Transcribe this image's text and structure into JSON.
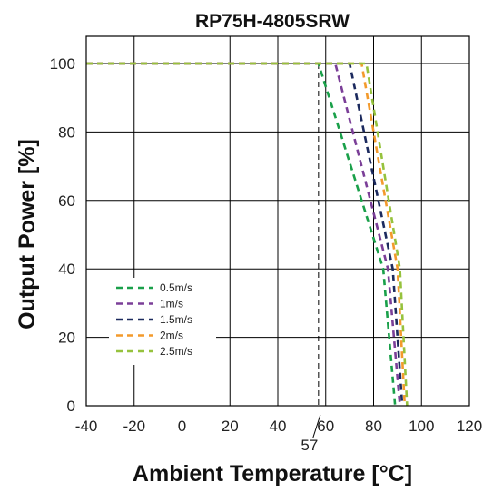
{
  "chart_data": {
    "type": "line",
    "title": "RP75H-4805SRW",
    "xlabel": "Ambient Temperature [°C]",
    "ylabel": "Output Power [%]",
    "xlim": [
      -40,
      120
    ],
    "ylim": [
      0,
      100
    ],
    "xticks": [
      "-40",
      "-20",
      "0",
      "20",
      "40",
      "60",
      "80",
      "100",
      "120"
    ],
    "yticks": [
      "0",
      "20",
      "40",
      "60",
      "80",
      "100"
    ],
    "grid": true,
    "legend_position": "bottom-left",
    "series": [
      {
        "name": "0.5m/s",
        "color": "#1aa04a",
        "x": [
          -40,
          57,
          84,
          89,
          89
        ],
        "y": [
          100,
          100,
          40,
          0,
          0
        ]
      },
      {
        "name": "1m/s",
        "color": "#7b3f98",
        "x": [
          -40,
          64,
          86,
          91,
          91
        ],
        "y": [
          100,
          100,
          40,
          0,
          0
        ]
      },
      {
        "name": "1.5m/s",
        "color": "#1c2a5e",
        "x": [
          -40,
          70,
          88,
          92,
          92
        ],
        "y": [
          100,
          100,
          40,
          0,
          0
        ]
      },
      {
        "name": "2m/s",
        "color": "#f39a2c",
        "x": [
          -40,
          75,
          90,
          93,
          93
        ],
        "y": [
          100,
          100,
          40,
          0,
          0
        ]
      },
      {
        "name": "2.5m/s",
        "color": "#96c23d",
        "x": [
          -40,
          77,
          91,
          94,
          94
        ],
        "y": [
          100,
          100,
          40,
          0,
          0
        ]
      }
    ],
    "annotations": [
      {
        "label": "57",
        "x": 57
      }
    ]
  }
}
